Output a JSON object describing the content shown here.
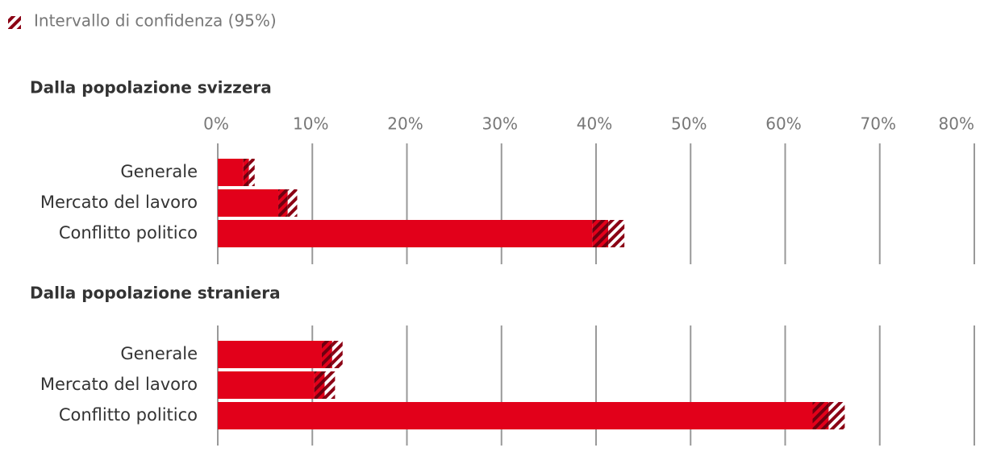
{
  "legend": "Intervallo di confidenza (95%)",
  "chart_data": [
    {
      "type": "bar",
      "title": "Dalla popolazione svizzera",
      "orientation": "horizontal",
      "categories": [
        "Generale",
        "Mercato del lavoro",
        "Conflitto politico"
      ],
      "values": [
        3.3,
        7.4,
        41.3
      ],
      "errors": [
        0.6,
        1.0,
        1.7
      ],
      "color": "#e2001a",
      "xlim": [
        0,
        80
      ],
      "xticks": [
        {
          "value": 0,
          "label": "0%"
        },
        {
          "value": 10,
          "label": "10%"
        },
        {
          "value": 20,
          "label": "20%"
        },
        {
          "value": 30,
          "label": "30%"
        },
        {
          "value": 40,
          "label": "40%"
        },
        {
          "value": 50,
          "label": "50%"
        },
        {
          "value": 60,
          "label": "60%"
        },
        {
          "value": 70,
          "label": "70%"
        },
        {
          "value": 80,
          "label": "80%"
        }
      ],
      "grid": true
    },
    {
      "type": "bar",
      "title": "Dalla popolazione straniera",
      "orientation": "horizontal",
      "categories": [
        "Generale",
        "Mercato del lavoro",
        "Conflitto politico"
      ],
      "values": [
        12.1,
        11.3,
        64.6
      ],
      "errors": [
        1.1,
        1.1,
        1.7
      ],
      "color": "#e2001a",
      "xlim": [
        0,
        80
      ],
      "grid": true
    }
  ]
}
